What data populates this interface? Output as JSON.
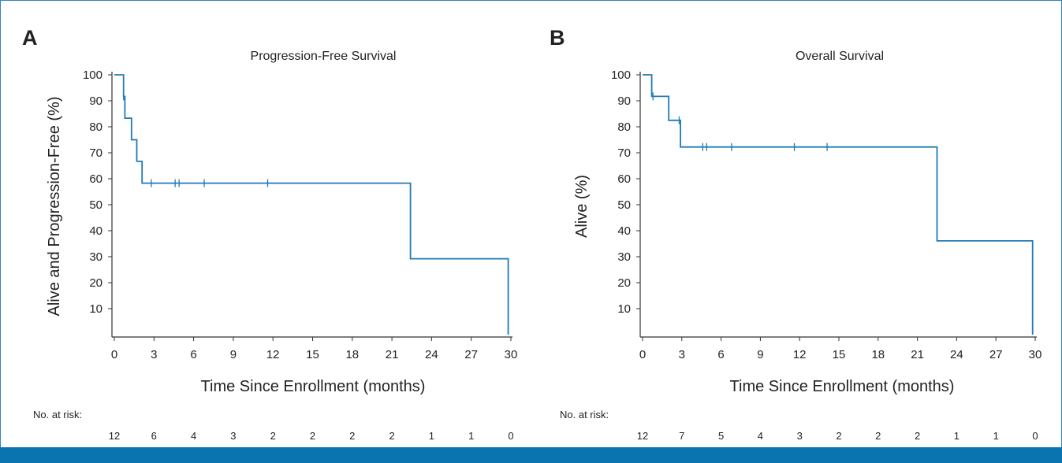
{
  "chart_data": [
    {
      "panel_label": "A",
      "type": "line",
      "title": "Progression-Free Survival",
      "xlabel": "Time Since Enrollment (months)",
      "ylabel": "Alive and Progression-Free (%)",
      "xlim": [
        0,
        30
      ],
      "ylim": [
        0,
        100
      ],
      "xticks": [
        0,
        3,
        6,
        9,
        12,
        15,
        18,
        21,
        24,
        27,
        30
      ],
      "yticks": [
        10,
        20,
        30,
        40,
        50,
        60,
        70,
        80,
        90,
        100
      ],
      "grid": false,
      "line_color": "#1f7ab5",
      "series": [
        {
          "x": [
            0,
            0.7,
            0.7,
            0.8,
            0.8,
            1.3,
            1.3,
            1.7,
            1.7,
            2.1,
            2.1,
            22.4,
            22.4,
            29.8,
            29.8
          ],
          "y": [
            100,
            100,
            91.7,
            91.7,
            83.3,
            83.3,
            75,
            75,
            66.7,
            66.7,
            58.3,
            58.3,
            29.2,
            29.2,
            0
          ]
        }
      ],
      "censor_marks": [
        {
          "x": 0.7,
          "y": 91.7
        },
        {
          "x": 2.8,
          "y": 58.3
        },
        {
          "x": 4.6,
          "y": 58.3
        },
        {
          "x": 4.9,
          "y": 58.3
        },
        {
          "x": 6.8,
          "y": 58.3
        },
        {
          "x": 11.6,
          "y": 58.3
        }
      ],
      "risk_table": {
        "label": "No. at risk:",
        "values": [
          "12",
          "6",
          "4",
          "3",
          "2",
          "2",
          "2",
          "2",
          "1",
          "1",
          "0"
        ]
      }
    },
    {
      "panel_label": "B",
      "type": "line",
      "title": "Overall Survival",
      "xlabel": "Time Since Enrollment (months)",
      "ylabel": "Alive (%)",
      "xlim": [
        0,
        30
      ],
      "ylim": [
        0,
        100
      ],
      "xticks": [
        0,
        3,
        6,
        9,
        12,
        15,
        18,
        21,
        24,
        27,
        30
      ],
      "yticks": [
        10,
        20,
        30,
        40,
        50,
        60,
        70,
        80,
        90,
        100
      ],
      "grid": false,
      "line_color": "#1f7ab5",
      "series": [
        {
          "x": [
            0,
            0.7,
            0.7,
            2.0,
            2.0,
            2.9,
            2.9,
            22.5,
            22.5,
            29.8,
            29.8
          ],
          "y": [
            100,
            100,
            91.7,
            91.7,
            82.5,
            82.5,
            72.2,
            72.2,
            36.1,
            36.1,
            0
          ]
        }
      ],
      "censor_marks": [
        {
          "x": 0.8,
          "y": 91.7
        },
        {
          "x": 2.8,
          "y": 82.5
        },
        {
          "x": 4.6,
          "y": 72.2
        },
        {
          "x": 4.9,
          "y": 72.2
        },
        {
          "x": 6.8,
          "y": 72.2
        },
        {
          "x": 11.6,
          "y": 72.2
        },
        {
          "x": 14.1,
          "y": 72.2
        }
      ],
      "risk_table": {
        "label": "No. at risk:",
        "values": [
          "12",
          "7",
          "5",
          "4",
          "3",
          "2",
          "2",
          "2",
          "1",
          "1",
          "0"
        ]
      }
    }
  ]
}
